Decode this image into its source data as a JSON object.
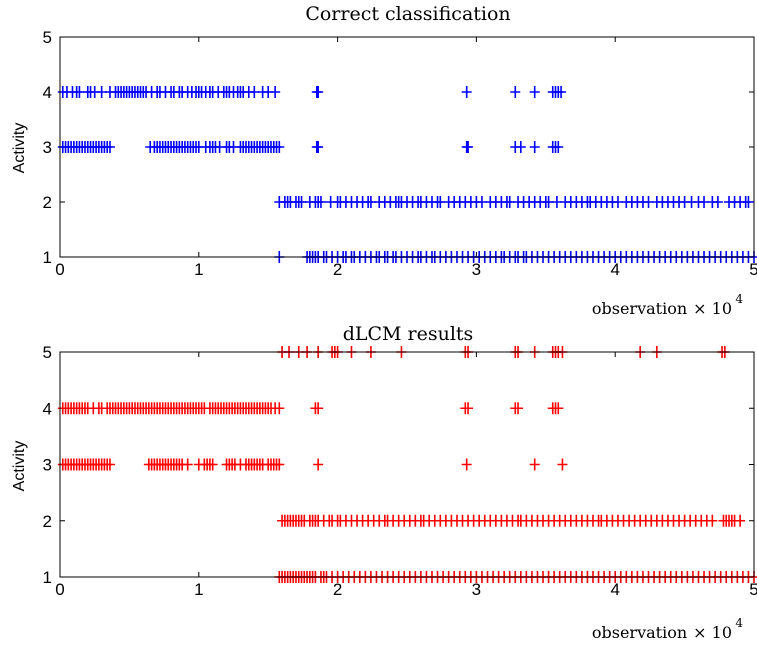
{
  "chart_data": [
    {
      "type": "scatter",
      "title": "Correct classification",
      "ylabel": "Activity",
      "xlabel": "observation",
      "x_multiplier_label": "× 10",
      "x_multiplier_exponent": "4",
      "xlim": [
        0,
        5
      ],
      "ylim": [
        1,
        5
      ],
      "xticks": [
        "0",
        "1",
        "2",
        "3",
        "4",
        "5"
      ],
      "yticks": [
        "1",
        "2",
        "3",
        "4",
        "5"
      ],
      "marker": "+",
      "color": "#0000ff",
      "series": [
        {
          "y": 4,
          "points": [
            0.02,
            0.05,
            0.09,
            0.12,
            0.14,
            0.2,
            0.22,
            0.25,
            0.3,
            0.36,
            0.4,
            0.42,
            0.44,
            0.46,
            0.48,
            0.5,
            0.52,
            0.54,
            0.56,
            0.58,
            0.6,
            0.62,
            0.66,
            0.7,
            0.72,
            0.76,
            0.8,
            0.82,
            0.86,
            0.88,
            0.92,
            0.95,
            0.98,
            1.0,
            1.02,
            1.05,
            1.08,
            1.1,
            1.14,
            1.18,
            1.2,
            1.22,
            1.25,
            1.28,
            1.3,
            1.32,
            1.36,
            1.4,
            1.46,
            1.5,
            1.55,
            1.85,
            1.86,
            2.93,
            3.28,
            3.42,
            3.55,
            3.57,
            3.59,
            3.61
          ]
        },
        {
          "y": 3,
          "points": [
            0.02,
            0.04,
            0.06,
            0.08,
            0.1,
            0.12,
            0.14,
            0.16,
            0.18,
            0.2,
            0.22,
            0.24,
            0.26,
            0.28,
            0.3,
            0.32,
            0.34,
            0.36,
            0.65,
            0.68,
            0.7,
            0.72,
            0.74,
            0.76,
            0.78,
            0.8,
            0.82,
            0.84,
            0.86,
            0.88,
            0.9,
            0.92,
            0.94,
            0.96,
            0.98,
            1.0,
            1.05,
            1.08,
            1.1,
            1.12,
            1.15,
            1.2,
            1.22,
            1.25,
            1.3,
            1.32,
            1.34,
            1.36,
            1.38,
            1.4,
            1.42,
            1.44,
            1.46,
            1.48,
            1.5,
            1.52,
            1.54,
            1.56,
            1.58,
            1.85,
            1.86,
            2.93,
            2.94,
            3.28,
            3.32,
            3.42,
            3.55,
            3.57,
            3.59
          ]
        },
        {
          "y": 2,
          "points": [
            1.58,
            1.62,
            1.64,
            1.66,
            1.7,
            1.72,
            1.74,
            1.8,
            1.84,
            1.86,
            1.88,
            1.95,
            2.0,
            2.02,
            2.06,
            2.1,
            2.14,
            2.18,
            2.22,
            2.24,
            2.3,
            2.34,
            2.38,
            2.42,
            2.44,
            2.46,
            2.5,
            2.54,
            2.58,
            2.6,
            2.64,
            2.68,
            2.72,
            2.74,
            2.8,
            2.84,
            2.88,
            2.92,
            2.96,
            3.0,
            3.04,
            3.1,
            3.14,
            3.18,
            3.22,
            3.24,
            3.3,
            3.34,
            3.38,
            3.42,
            3.46,
            3.5,
            3.52,
            3.58,
            3.64,
            3.68,
            3.72,
            3.76,
            3.8,
            3.82,
            3.86,
            3.9,
            3.94,
            3.98,
            4.02,
            4.08,
            4.12,
            4.16,
            4.2,
            4.24,
            4.3,
            4.34,
            4.38,
            4.42,
            4.46,
            4.5,
            4.55,
            4.6,
            4.64,
            4.7,
            4.74,
            4.82,
            4.86,
            4.9,
            4.94,
            4.96
          ]
        },
        {
          "y": 1,
          "points": [
            1.58,
            1.78,
            1.8,
            1.82,
            1.84,
            1.86,
            1.9,
            1.92,
            1.96,
            2.0,
            2.04,
            2.06,
            2.1,
            2.12,
            2.16,
            2.2,
            2.24,
            2.28,
            2.3,
            2.34,
            2.36,
            2.4,
            2.42,
            2.46,
            2.5,
            2.54,
            2.58,
            2.6,
            2.64,
            2.68,
            2.7,
            2.74,
            2.78,
            2.82,
            2.86,
            2.9,
            2.94,
            2.98,
            3.02,
            3.06,
            3.1,
            3.14,
            3.18,
            3.2,
            3.24,
            3.28,
            3.3,
            3.34,
            3.36,
            3.4,
            3.44,
            3.48,
            3.52,
            3.56,
            3.6,
            3.64,
            3.68,
            3.72,
            3.76,
            3.8,
            3.84,
            3.88,
            3.92,
            3.96,
            4.0,
            4.04,
            4.08,
            4.12,
            4.16,
            4.2,
            4.24,
            4.28,
            4.32,
            4.36,
            4.4,
            4.44,
            4.48,
            4.52,
            4.56,
            4.6,
            4.64,
            4.68,
            4.72,
            4.76,
            4.8,
            4.84,
            4.88,
            4.92,
            4.96,
            5.0
          ]
        }
      ]
    },
    {
      "type": "scatter",
      "title": "dLCM results",
      "ylabel": "Activity",
      "xlabel": "observation",
      "x_multiplier_label": "× 10",
      "x_multiplier_exponent": "4",
      "xlim": [
        0,
        5
      ],
      "ylim": [
        1,
        5
      ],
      "xticks": [
        "0",
        "1",
        "2",
        "3",
        "4",
        "5"
      ],
      "yticks": [
        "1",
        "2",
        "3",
        "4",
        "5"
      ],
      "marker": "+",
      "color": "#ff0000",
      "series": [
        {
          "y": 5,
          "points": [
            1.6,
            1.65,
            1.72,
            1.78,
            1.86,
            1.96,
            1.98,
            2.0,
            2.1,
            2.24,
            2.46,
            2.92,
            2.94,
            3.28,
            3.3,
            3.42,
            3.55,
            3.57,
            3.59,
            3.62,
            4.18,
            4.3,
            4.77,
            4.79
          ]
        },
        {
          "y": 4,
          "points": [
            0.02,
            0.04,
            0.06,
            0.08,
            0.1,
            0.12,
            0.14,
            0.16,
            0.18,
            0.2,
            0.24,
            0.28,
            0.3,
            0.34,
            0.36,
            0.38,
            0.4,
            0.42,
            0.44,
            0.46,
            0.48,
            0.5,
            0.52,
            0.54,
            0.56,
            0.58,
            0.6,
            0.62,
            0.64,
            0.66,
            0.68,
            0.7,
            0.72,
            0.74,
            0.76,
            0.78,
            0.8,
            0.82,
            0.84,
            0.86,
            0.88,
            0.9,
            0.92,
            0.94,
            0.96,
            0.98,
            1.0,
            1.02,
            1.04,
            1.08,
            1.1,
            1.12,
            1.14,
            1.16,
            1.18,
            1.2,
            1.22,
            1.24,
            1.26,
            1.28,
            1.3,
            1.32,
            1.34,
            1.36,
            1.38,
            1.4,
            1.42,
            1.44,
            1.46,
            1.48,
            1.5,
            1.52,
            1.55,
            1.58,
            1.84,
            1.86,
            2.92,
            2.94,
            3.28,
            3.3,
            3.55,
            3.57,
            3.59
          ]
        },
        {
          "y": 3,
          "points": [
            0.02,
            0.04,
            0.06,
            0.08,
            0.1,
            0.12,
            0.14,
            0.16,
            0.18,
            0.2,
            0.22,
            0.24,
            0.26,
            0.28,
            0.3,
            0.32,
            0.34,
            0.36,
            0.64,
            0.66,
            0.68,
            0.7,
            0.72,
            0.74,
            0.76,
            0.78,
            0.8,
            0.82,
            0.84,
            0.86,
            0.88,
            0.92,
            1.0,
            1.04,
            1.06,
            1.08,
            1.1,
            1.2,
            1.22,
            1.24,
            1.26,
            1.3,
            1.34,
            1.36,
            1.38,
            1.4,
            1.42,
            1.44,
            1.46,
            1.5,
            1.52,
            1.54,
            1.56,
            1.58,
            1.86,
            2.93,
            3.42,
            3.62
          ]
        },
        {
          "y": 2,
          "points": [
            1.6,
            1.62,
            1.64,
            1.66,
            1.68,
            1.7,
            1.72,
            1.74,
            1.76,
            1.8,
            1.82,
            1.84,
            1.86,
            1.9,
            1.94,
            1.96,
            2.0,
            2.02,
            2.06,
            2.1,
            2.14,
            2.18,
            2.22,
            2.26,
            2.3,
            2.34,
            2.36,
            2.4,
            2.44,
            2.48,
            2.52,
            2.56,
            2.6,
            2.62,
            2.66,
            2.7,
            2.74,
            2.78,
            2.82,
            2.86,
            2.9,
            2.94,
            2.98,
            3.02,
            3.06,
            3.1,
            3.14,
            3.18,
            3.22,
            3.26,
            3.3,
            3.32,
            3.36,
            3.4,
            3.44,
            3.48,
            3.52,
            3.56,
            3.6,
            3.64,
            3.68,
            3.72,
            3.76,
            3.8,
            3.84,
            3.88,
            3.9,
            3.94,
            3.98,
            4.02,
            4.06,
            4.1,
            4.14,
            4.18,
            4.22,
            4.26,
            4.3,
            4.34,
            4.38,
            4.42,
            4.46,
            4.5,
            4.54,
            4.58,
            4.62,
            4.66,
            4.7,
            4.78,
            4.8,
            4.82,
            4.84,
            4.86,
            4.9
          ]
        },
        {
          "y": 1,
          "points": [
            1.58,
            1.6,
            1.62,
            1.64,
            1.66,
            1.68,
            1.7,
            1.72,
            1.74,
            1.76,
            1.78,
            1.8,
            1.82,
            1.84,
            1.88,
            1.9,
            1.92,
            1.96,
            2.0,
            2.04,
            2.08,
            2.12,
            2.16,
            2.2,
            2.24,
            2.28,
            2.32,
            2.36,
            2.4,
            2.44,
            2.48,
            2.52,
            2.56,
            2.6,
            2.64,
            2.68,
            2.72,
            2.76,
            2.8,
            2.84,
            2.88,
            2.92,
            2.96,
            3.0,
            3.04,
            3.08,
            3.12,
            3.16,
            3.2,
            3.24,
            3.28,
            3.32,
            3.36,
            3.4,
            3.44,
            3.48,
            3.52,
            3.56,
            3.6,
            3.64,
            3.68,
            3.72,
            3.76,
            3.8,
            3.84,
            3.88,
            3.92,
            3.96,
            4.0,
            4.04,
            4.08,
            4.12,
            4.16,
            4.2,
            4.24,
            4.28,
            4.32,
            4.36,
            4.4,
            4.44,
            4.48,
            4.52,
            4.56,
            4.6,
            4.64,
            4.68,
            4.72,
            4.76,
            4.8,
            4.84,
            4.88,
            4.92,
            4.96,
            5.0
          ]
        }
      ]
    }
  ]
}
